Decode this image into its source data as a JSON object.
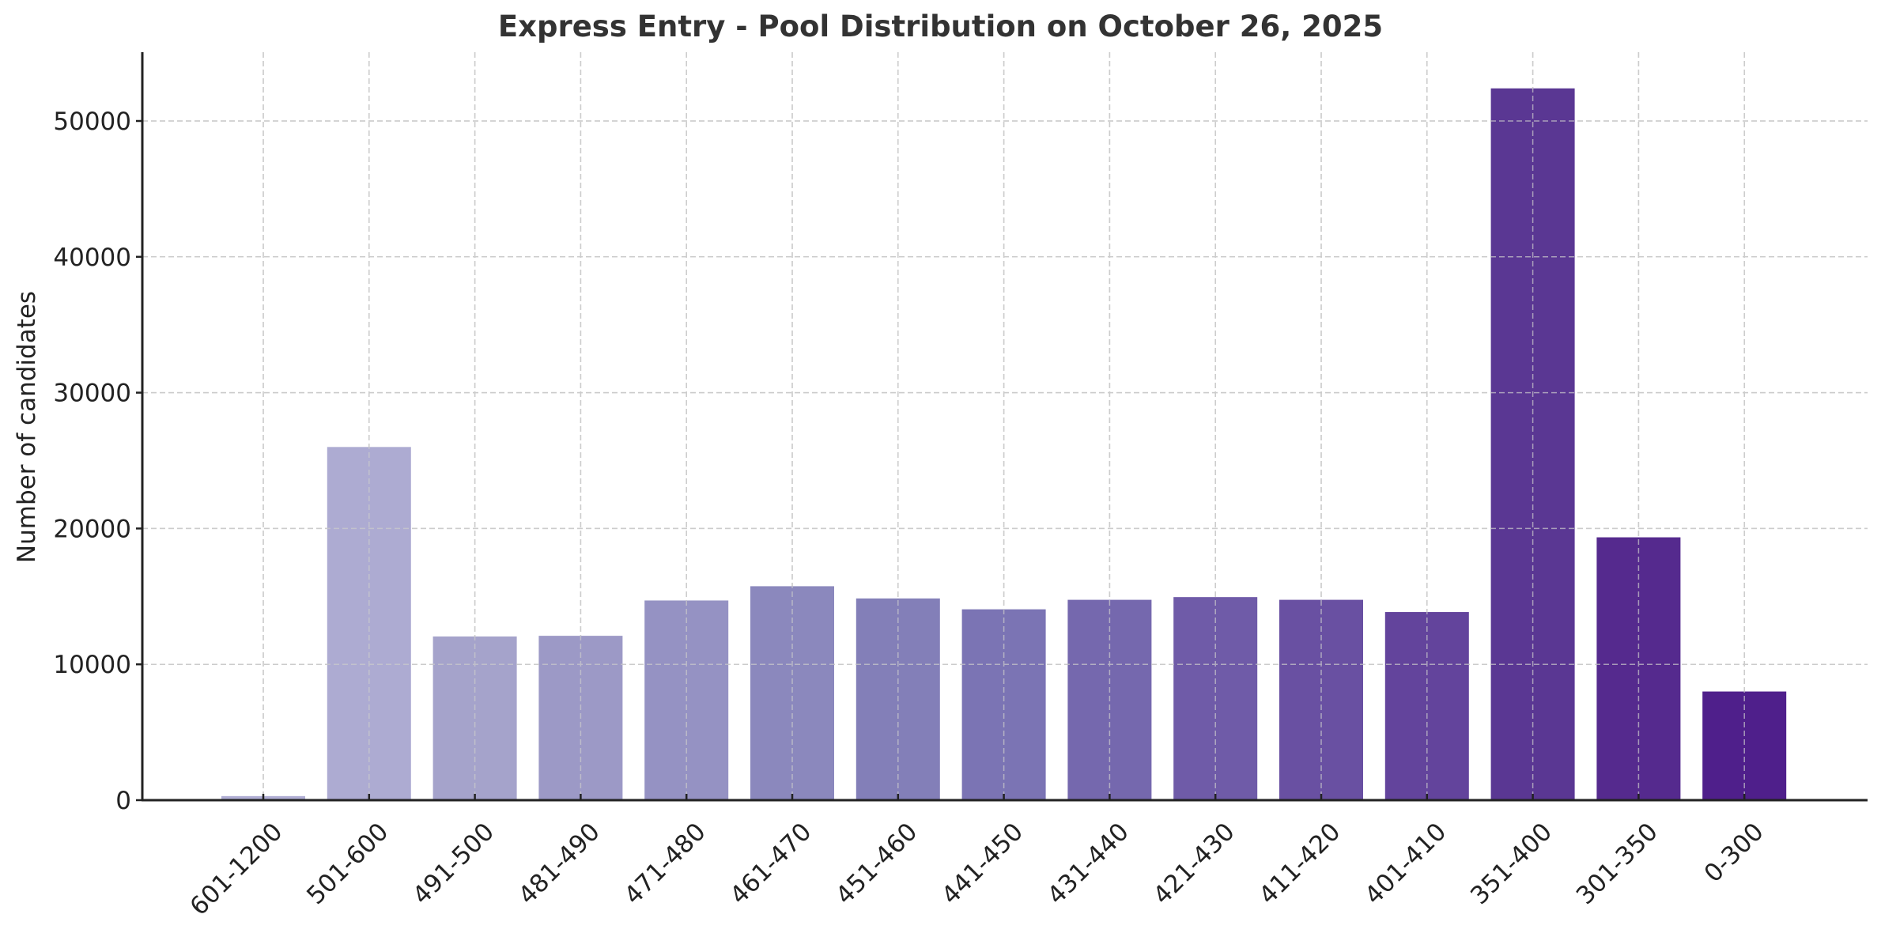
{
  "chart_data": {
    "type": "bar",
    "title": "Express Entry - Pool Distribution on October 26, 2025",
    "xlabel": "",
    "ylabel": "Number of candidates",
    "categories": [
      "601-1200",
      "501-600",
      "491-500",
      "481-490",
      "471-480",
      "461-470",
      "451-460",
      "441-450",
      "431-440",
      "421-430",
      "411-420",
      "401-410",
      "351-400",
      "301-350",
      "0-300"
    ],
    "values": [
      300,
      26000,
      12050,
      12100,
      14700,
      15750,
      14850,
      14050,
      14750,
      14950,
      14750,
      13850,
      52400,
      19350,
      8000
    ],
    "colors": [
      "#b0aed4",
      "#adabd2",
      "#a5a3cb",
      "#9c99c6",
      "#9592c3",
      "#8b88bd",
      "#837fb8",
      "#7b74b4",
      "#7568ae",
      "#6f5ba8",
      "#6950a2",
      "#63449c",
      "#5a3793",
      "#552a8e",
      "#4f1f8b"
    ],
    "ylim": [
      0,
      55000
    ],
    "yticks": [
      0,
      10000,
      20000,
      30000,
      40000,
      50000
    ],
    "grid": true,
    "grid_style": "dashed",
    "legend": "none",
    "xtick_rotation": 45
  }
}
